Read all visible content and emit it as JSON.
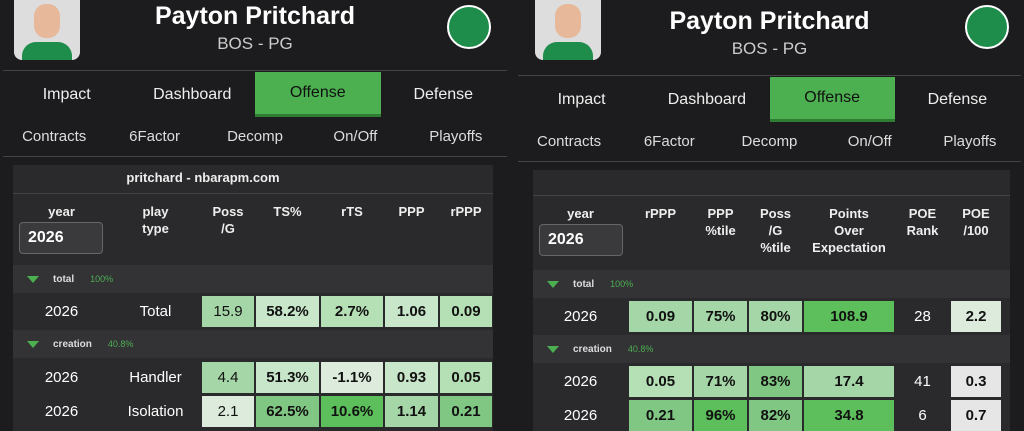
{
  "panels": [
    {
      "name": "Payton Pritchard",
      "team": "BOS - PG",
      "tabs": [
        "Impact",
        "Dashboard",
        "Offense",
        "Defense"
      ],
      "subtabs": [
        "Contracts",
        "6Factor",
        "Decomp",
        "On/Off",
        "Playoffs"
      ],
      "source": "pritchard - nbarapm.com",
      "year_label": "year",
      "year_value": "2026",
      "columns": [
        "play type",
        "Poss /G",
        "TS%",
        "rTS",
        "PPP",
        "rPPP"
      ],
      "groups": [
        {
          "name": "total",
          "share": "100%",
          "rows": [
            [
              "2026",
              "Total",
              "15.9",
              "58.2%",
              "2.7%",
              "1.06",
              "0.09"
            ]
          ]
        },
        {
          "name": "creation",
          "share": "40.8%",
          "rows": [
            [
              "2026",
              "Handler",
              "4.4",
              "51.3%",
              "-1.1%",
              "0.93",
              "0.05"
            ],
            [
              "2026",
              "Isolation",
              "2.1",
              "62.5%",
              "10.6%",
              "1.14",
              "0.21"
            ]
          ]
        }
      ]
    },
    {
      "name": "Payton Pritchard",
      "team": "BOS - PG",
      "tabs": [
        "Impact",
        "Dashboard",
        "Offense",
        "Defense"
      ],
      "subtabs": [
        "Contracts",
        "6Factor",
        "Decomp",
        "On/Off",
        "Playoffs"
      ],
      "year_label": "year",
      "year_value": "2026",
      "columns": [
        "rPPP",
        "PPP %tile",
        "Poss /G %tile",
        "Points Over Expectation",
        "POE Rank",
        "POE /100"
      ],
      "groups": [
        {
          "name": "total",
          "share": "100%",
          "rows": [
            [
              "2026",
              "0.09",
              "75%",
              "80%",
              "108.9",
              "28",
              "2.2"
            ]
          ]
        },
        {
          "name": "creation",
          "share": "40.8%",
          "rows": [
            [
              "2026",
              "0.05",
              "71%",
              "83%",
              "17.4",
              "41",
              "0.3"
            ],
            [
              "2026",
              "0.21",
              "96%",
              "82%",
              "34.8",
              "6",
              "0.7"
            ]
          ]
        }
      ]
    }
  ]
}
